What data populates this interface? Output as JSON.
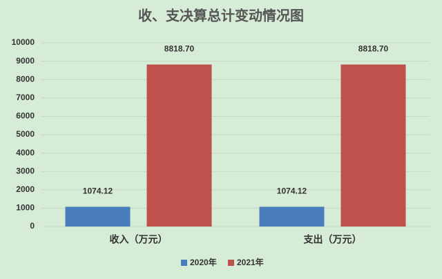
{
  "chart_data": {
    "type": "bar",
    "title": "收、支决算总计变动情况图",
    "categories": [
      "收入（万元）",
      "支出（万元）"
    ],
    "series": [
      {
        "name": "2020年",
        "color": "#4a7ebb",
        "values": [
          1074.12,
          1074.12
        ],
        "value_labels": [
          "1074.12",
          "1074.12"
        ]
      },
      {
        "name": "2021年",
        "color": "#c0504d",
        "values": [
          8818.7,
          8818.7
        ],
        "value_labels": [
          "8818.70",
          "8818.70"
        ]
      }
    ],
    "ylim": [
      0,
      10000
    ],
    "yticks": [
      0,
      1000,
      2000,
      3000,
      4000,
      5000,
      6000,
      7000,
      8000,
      9000,
      10000
    ],
    "grid": true,
    "legend": "bottom"
  }
}
